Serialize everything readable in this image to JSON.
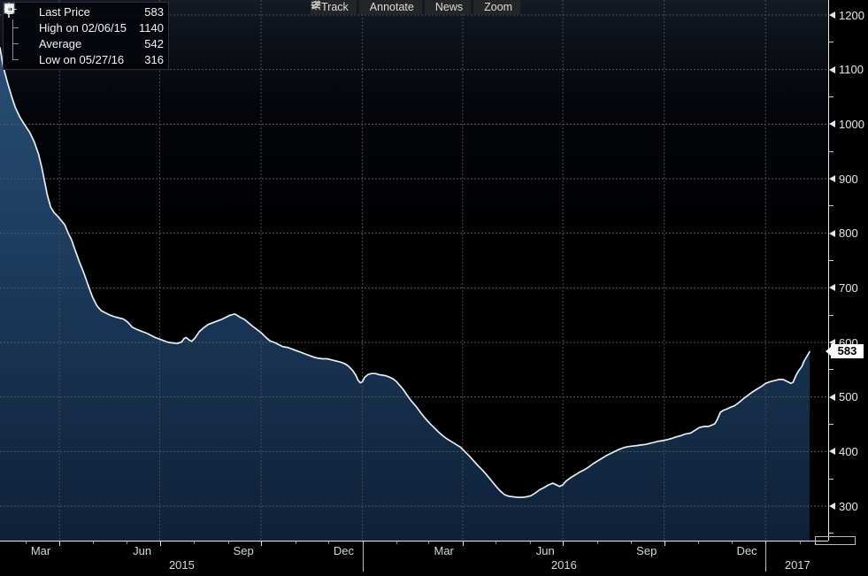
{
  "toolbar": {
    "buttons": [
      {
        "icon": "track-icon",
        "label": "Track"
      },
      {
        "icon": "annotate-icon",
        "label": "Annotate"
      },
      {
        "icon": "news-icon",
        "label": "News"
      },
      {
        "icon": "zoom-icon",
        "label": "Zoom"
      }
    ]
  },
  "legend": {
    "rows": [
      {
        "marker": "last-price-swatch",
        "label": "Last Price",
        "value": "583"
      },
      {
        "marker": "high-marker",
        "label": "High on 02/06/15",
        "value": "1140"
      },
      {
        "marker": "average-marker",
        "label": "Average",
        "value": "542"
      },
      {
        "marker": "low-marker",
        "label": "Low on 05/27/16",
        "value": "316"
      }
    ]
  },
  "chart_data": {
    "type": "area",
    "title": "Last Price",
    "grid": "dotted",
    "legend_position": "top-left",
    "x_axis": {
      "unit": "days since 2015-02-06",
      "start_date": "02/06/15",
      "end_date": "02/10/17",
      "t_max": 752,
      "month_labels": [
        {
          "label": "Mar",
          "t": 37
        },
        {
          "label": "Jun",
          "t": 129
        },
        {
          "label": "Sep",
          "t": 221
        },
        {
          "label": "Dec",
          "t": 312
        },
        {
          "label": "Mar",
          "t": 403
        },
        {
          "label": "Jun",
          "t": 495
        },
        {
          "label": "Sep",
          "t": 587
        },
        {
          "label": "Dec",
          "t": 678
        }
      ],
      "year_labels": [
        {
          "label": "2015",
          "t": 165
        },
        {
          "label": "2016",
          "t": 512
        },
        {
          "label": "2017",
          "t": 724
        }
      ],
      "quarter_ticks": [
        54,
        145,
        237,
        329,
        420,
        511,
        603,
        695
      ],
      "month_ticks": [
        23,
        84,
        115,
        176,
        207,
        268,
        298,
        360,
        389,
        450,
        481,
        542,
        573,
        634,
        664,
        726
      ],
      "year_separators": [
        329,
        695
      ]
    },
    "y_axis": {
      "min": 300,
      "max": 1200,
      "step": 100,
      "minor_step": 50,
      "side": "right"
    },
    "last_price_label": "583",
    "stats": {
      "last": 583,
      "high": 1140,
      "high_date": "02/06/15",
      "average": 542,
      "low": 316,
      "low_date": "05/27/16"
    },
    "series": [
      {
        "name": "Last Price",
        "points": [
          [
            0,
            1140
          ],
          [
            3,
            1105
          ],
          [
            7,
            1075
          ],
          [
            11,
            1048
          ],
          [
            14,
            1030
          ],
          [
            18,
            1013
          ],
          [
            22,
            1000
          ],
          [
            27,
            985
          ],
          [
            31,
            968
          ],
          [
            35,
            945
          ],
          [
            38,
            920
          ],
          [
            40,
            900
          ],
          [
            43,
            870
          ],
          [
            46,
            848
          ],
          [
            49,
            838
          ],
          [
            52,
            832
          ],
          [
            55,
            825
          ],
          [
            59,
            815
          ],
          [
            62,
            800
          ],
          [
            65,
            788
          ],
          [
            68,
            770
          ],
          [
            72,
            748
          ],
          [
            76,
            728
          ],
          [
            80,
            705
          ],
          [
            84,
            683
          ],
          [
            88,
            667
          ],
          [
            92,
            658
          ],
          [
            96,
            654
          ],
          [
            100,
            650
          ],
          [
            104,
            647
          ],
          [
            108,
            645
          ],
          [
            112,
            643
          ],
          [
            116,
            637
          ],
          [
            120,
            628
          ],
          [
            124,
            624
          ],
          [
            129,
            620
          ],
          [
            133,
            617
          ],
          [
            137,
            613
          ],
          [
            141,
            609
          ],
          [
            145,
            606
          ],
          [
            149,
            603
          ],
          [
            153,
            600
          ],
          [
            157,
            599
          ],
          [
            161,
            598
          ],
          [
            165,
            601
          ],
          [
            167,
            607
          ],
          [
            169,
            609
          ],
          [
            172,
            604
          ],
          [
            174,
            602
          ],
          [
            177,
            608
          ],
          [
            181,
            620
          ],
          [
            185,
            627
          ],
          [
            189,
            633
          ],
          [
            193,
            636
          ],
          [
            197,
            639
          ],
          [
            201,
            642
          ],
          [
            205,
            646
          ],
          [
            209,
            650
          ],
          [
            213,
            652
          ],
          [
            215,
            650
          ],
          [
            218,
            646
          ],
          [
            222,
            642
          ],
          [
            225,
            637
          ],
          [
            229,
            630
          ],
          [
            233,
            624
          ],
          [
            237,
            618
          ],
          [
            241,
            610
          ],
          [
            245,
            603
          ],
          [
            249,
            600
          ],
          [
            253,
            596
          ],
          [
            257,
            592
          ],
          [
            261,
            591
          ],
          [
            265,
            588
          ],
          [
            269,
            585
          ],
          [
            273,
            582
          ],
          [
            277,
            579
          ],
          [
            281,
            576
          ],
          [
            285,
            573
          ],
          [
            289,
            571
          ],
          [
            293,
            570
          ],
          [
            297,
            570
          ],
          [
            301,
            568
          ],
          [
            305,
            566
          ],
          [
            309,
            564
          ],
          [
            313,
            561
          ],
          [
            316,
            557
          ],
          [
            320,
            549
          ],
          [
            323,
            540
          ],
          [
            325,
            531
          ],
          [
            327,
            526
          ],
          [
            329,
            528
          ],
          [
            331,
            536
          ],
          [
            334,
            541
          ],
          [
            337,
            543
          ],
          [
            341,
            543
          ],
          [
            344,
            541
          ],
          [
            347,
            540
          ],
          [
            350,
            539
          ],
          [
            353,
            537
          ],
          [
            357,
            533
          ],
          [
            360,
            528
          ],
          [
            363,
            521
          ],
          [
            366,
            514
          ],
          [
            369,
            505
          ],
          [
            373,
            494
          ],
          [
            378,
            482
          ],
          [
            382,
            471
          ],
          [
            386,
            461
          ],
          [
            390,
            452
          ],
          [
            394,
            444
          ],
          [
            398,
            436
          ],
          [
            402,
            429
          ],
          [
            406,
            423
          ],
          [
            410,
            418
          ],
          [
            414,
            413
          ],
          [
            418,
            408
          ],
          [
            422,
            400
          ],
          [
            426,
            392
          ],
          [
            430,
            383
          ],
          [
            434,
            374
          ],
          [
            438,
            366
          ],
          [
            442,
            357
          ],
          [
            446,
            347
          ],
          [
            450,
            337
          ],
          [
            454,
            328
          ],
          [
            458,
            321
          ],
          [
            462,
            318
          ],
          [
            466,
            317
          ],
          [
            470,
            316
          ],
          [
            474,
            316
          ],
          [
            478,
            317
          ],
          [
            482,
            319
          ],
          [
            486,
            324
          ],
          [
            490,
            330
          ],
          [
            494,
            334
          ],
          [
            498,
            339
          ],
          [
            502,
            342
          ],
          [
            504,
            340
          ],
          [
            508,
            336
          ],
          [
            511,
            339
          ],
          [
            514,
            346
          ],
          [
            518,
            352
          ],
          [
            522,
            357
          ],
          [
            526,
            362
          ],
          [
            530,
            366
          ],
          [
            534,
            371
          ],
          [
            538,
            377
          ],
          [
            542,
            382
          ],
          [
            546,
            387
          ],
          [
            550,
            392
          ],
          [
            554,
            396
          ],
          [
            558,
            400
          ],
          [
            562,
            404
          ],
          [
            566,
            407
          ],
          [
            570,
            409
          ],
          [
            574,
            410
          ],
          [
            578,
            411
          ],
          [
            582,
            412
          ],
          [
            586,
            413
          ],
          [
            590,
            415
          ],
          [
            594,
            417
          ],
          [
            598,
            419
          ],
          [
            602,
            420
          ],
          [
            606,
            422
          ],
          [
            610,
            424
          ],
          [
            614,
            427
          ],
          [
            618,
            429
          ],
          [
            622,
            432
          ],
          [
            627,
            434
          ],
          [
            631,
            439
          ],
          [
            635,
            444
          ],
          [
            639,
            446
          ],
          [
            643,
            446
          ],
          [
            647,
            449
          ],
          [
            649,
            451
          ],
          [
            651,
            458
          ],
          [
            654,
            472
          ],
          [
            657,
            476
          ],
          [
            660,
            478
          ],
          [
            663,
            481
          ],
          [
            667,
            484
          ],
          [
            671,
            490
          ],
          [
            675,
            497
          ],
          [
            679,
            503
          ],
          [
            683,
            509
          ],
          [
            687,
            514
          ],
          [
            691,
            519
          ],
          [
            695,
            525
          ],
          [
            699,
            528
          ],
          [
            703,
            530
          ],
          [
            707,
            532
          ],
          [
            711,
            532
          ],
          [
            715,
            528
          ],
          [
            718,
            525
          ],
          [
            720,
            527
          ],
          [
            723,
            541
          ],
          [
            725,
            548
          ],
          [
            728,
            556
          ],
          [
            730,
            566
          ],
          [
            733,
            576
          ],
          [
            735,
            583
          ]
        ]
      }
    ]
  },
  "colors": {
    "background": "#000000",
    "plot_top_tint": "#161a24",
    "area_top": "#2a4e75",
    "area_mid": "#1d3c5e",
    "area_bottom": "#0e2137",
    "line": "#e6edf4",
    "grid_h": "#54585e",
    "grid_v": "#484c52",
    "axis": "#e9e9e9",
    "axis_text": "#e6e6e6",
    "button_bg": "#232527",
    "button_text": "#dcdcdc",
    "legend_text": "#f2f2f2",
    "last_price_box": "#ffffff",
    "last_price_text": "#000000"
  }
}
